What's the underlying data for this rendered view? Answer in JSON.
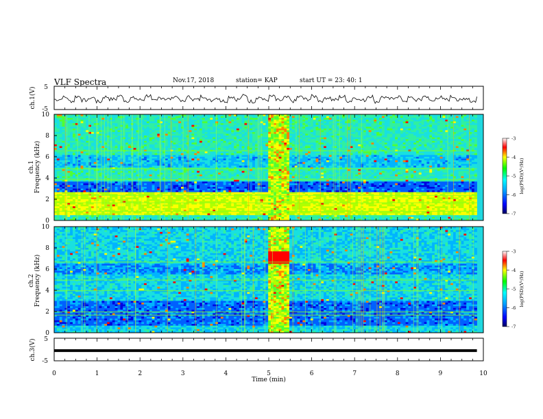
{
  "header": {
    "title": "VLF Spectra",
    "date": "Nov.17, 2018",
    "station": "station= KAP",
    "start": "start  UT  =   23: 40: 1"
  },
  "chart_data": [
    {
      "type": "line",
      "panel": "ch1-waveform",
      "ylabel": "ch.1(V)",
      "ylim": [
        -5,
        5
      ],
      "yticks": [
        "5",
        "-5"
      ],
      "xlim": [
        0,
        10
      ],
      "description_values": "noisy trace oscillating roughly between -2 and 2 V around -0.5 V",
      "y_approx": [
        -0.4,
        0.6,
        -1.2,
        1.0,
        -0.8,
        0.4,
        -1.5,
        0.8,
        -0.3,
        1.2,
        -1.0,
        0.2,
        -0.6,
        1.4,
        -1.2,
        0.5,
        -0.2,
        1.0,
        -1.4,
        0.7,
        -0.5,
        1.1,
        -0.9,
        0.3,
        -1.1,
        0.9,
        -0.4,
        1.3,
        -1.3,
        0.6,
        -0.7,
        1.0,
        -0.9,
        0.4,
        -1.2,
        0.8,
        -0.3,
        1.1,
        -1.0,
        0.5,
        -0.6,
        0.9,
        -1.1,
        0.4,
        -0.8,
        1.2,
        -1.4,
        0.7,
        -0.2,
        1.0,
        -1.0,
        0.3,
        -0.7,
        1.1,
        -1.2,
        0.6,
        -0.5,
        0.9,
        -0.9,
        0.2,
        -1.3,
        0.8
      ]
    },
    {
      "type": "heatmap",
      "panel": "ch1-spectrogram",
      "ylabel": "ch.1\nFrequency (kHz)",
      "ylim": [
        0,
        10
      ],
      "yticks": [
        "0",
        "2",
        "4",
        "6",
        "8",
        "10"
      ],
      "xlim": [
        0,
        10
      ],
      "colorbar": {
        "label": "log(PSD)(V²/Hz)",
        "range": [
          -7,
          -3
        ],
        "ticks": [
          "-3",
          "-4",
          "-5",
          "-6",
          "-7"
        ]
      },
      "features": "broadband green/cyan noise; dark blue band near 3 kHz; bright yellow band 0.5-2.5 kHz; bright broadband burst between 5.0 and 5.5 min"
    },
    {
      "type": "heatmap",
      "panel": "ch2-spectrogram",
      "ylabel": "ch.2\nFrequency (kHz)",
      "ylim": [
        0,
        10
      ],
      "yticks": [
        "0",
        "2",
        "4",
        "6",
        "8",
        "10"
      ],
      "xlim": [
        0,
        10
      ],
      "colorbar": {
        "label": "log(PSD)(V²/Hz)",
        "range": [
          -7,
          -3
        ],
        "ticks": [
          "-3",
          "-4",
          "-5",
          "-6",
          "-7"
        ]
      },
      "features": "cyan/blue noise; dark blue region below 3 kHz; broadband bright burst between 5.0 and 5.5 min with orange near 7 kHz"
    },
    {
      "type": "line",
      "panel": "ch3-waveform",
      "ylabel": "ch.3(V)",
      "ylim": [
        -5,
        5
      ],
      "yticks": [
        "5",
        "0",
        "-5"
      ],
      "xlim": [
        0,
        10
      ],
      "x": [
        0,
        9.85
      ],
      "y": [
        -0.5,
        -0.5
      ]
    }
  ],
  "xaxis": {
    "label": "Time  (min)",
    "ticks": [
      "0",
      "1",
      "2",
      "3",
      "4",
      "5",
      "6",
      "7",
      "8",
      "9",
      "10"
    ]
  },
  "colors": {
    "waveform": "#000000",
    "axis": "#000000"
  }
}
